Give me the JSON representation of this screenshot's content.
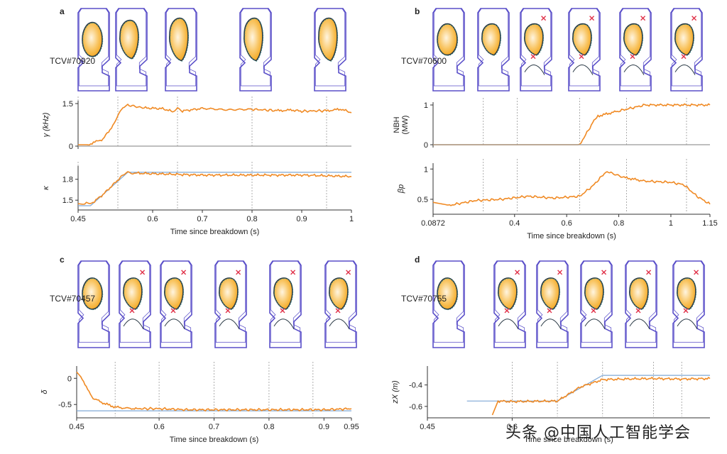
{
  "watermark": "头条 @中国人工智能学会",
  "panels": {
    "a": {
      "letter": "a",
      "shot": "TCV#70920",
      "xlabel": "Time since breakdown (s)"
    },
    "b": {
      "letter": "b",
      "shot": "TCV#70600",
      "xlabel": "Time since breakdown (s)"
    },
    "c": {
      "letter": "c",
      "shot": "TCV#70457",
      "xlabel": "Time since breakdown (s)"
    },
    "d": {
      "letter": "d",
      "shot": "TCV#70755",
      "xlabel": "Time since breakdown (s)"
    }
  },
  "colors": {
    "vessel": "#5a4fc9",
    "target": "#7fa8d6",
    "measured": "#f08a24",
    "plasma_outer": "#f3a51a",
    "plasma_inner": "#fff5e0",
    "xpoint": "#e0334a",
    "lcfs": "#2b3a46"
  },
  "chart_data": [
    {
      "type": "line",
      "panel": "a",
      "name": "gamma",
      "ylabel": "γ (kHz)",
      "yticks": [
        "0",
        "1.5"
      ],
      "xticks": [],
      "xlim": [
        0.45,
        1.0
      ],
      "ylim": [
        0,
        1.5
      ],
      "series": [
        {
          "role": "measured",
          "x": [
            0.45,
            0.47,
            0.5,
            0.52,
            0.53,
            0.54,
            0.55,
            0.58,
            0.62,
            0.64,
            0.65,
            0.66,
            0.7,
            0.75,
            0.8,
            0.85,
            0.88,
            0.9,
            0.95,
            0.98,
            1.0
          ],
          "y": [
            0.05,
            0.05,
            0.25,
            0.72,
            1.05,
            1.35,
            1.45,
            1.35,
            1.32,
            1.22,
            1.36,
            1.24,
            1.33,
            1.28,
            1.3,
            1.25,
            1.27,
            1.23,
            1.25,
            1.3,
            1.18
          ]
        },
        {
          "role": "baseline",
          "x": [
            0.45,
            1.0
          ],
          "y": [
            0,
            0
          ]
        }
      ],
      "markers": [
        0.45,
        0.53,
        0.65,
        0.8,
        0.95
      ]
    },
    {
      "type": "line",
      "panel": "a",
      "name": "kappa",
      "ylabel": "κ",
      "yticks": [
        "1.5",
        "1.8"
      ],
      "xticks": [
        "0.45",
        "0.6",
        "0.7",
        "0.8",
        "0.9",
        "1"
      ],
      "xlim": [
        0.45,
        1.0
      ],
      "ylim": [
        1.4,
        1.95
      ],
      "series": [
        {
          "role": "target",
          "x": [
            0.45,
            0.475,
            0.55,
            1.0
          ],
          "y": [
            1.42,
            1.42,
            1.9,
            1.9
          ]
        },
        {
          "role": "measured",
          "x": [
            0.45,
            0.46,
            0.47,
            0.48,
            0.5,
            0.52,
            0.54,
            0.55,
            0.56,
            0.6,
            0.7,
            0.8,
            0.9,
            1.0
          ],
          "y": [
            1.45,
            1.44,
            1.46,
            1.47,
            1.58,
            1.72,
            1.86,
            1.9,
            1.89,
            1.88,
            1.86,
            1.86,
            1.86,
            1.84
          ]
        }
      ],
      "markers": [
        0.45,
        0.53,
        0.65,
        0.8,
        0.95
      ]
    },
    {
      "type": "line",
      "panel": "b",
      "name": "NBH",
      "ylabel": "NBH (MW)",
      "yticks": [
        "0",
        "1"
      ],
      "xticks": [],
      "xlim": [
        0.0872,
        1.15
      ],
      "ylim": [
        0,
        1
      ],
      "series": [
        {
          "role": "measured",
          "x": [
            0.0872,
            0.65,
            0.7,
            0.72,
            0.8,
            0.9,
            1.15
          ],
          "y": [
            0,
            0,
            0.55,
            0.72,
            0.85,
            1.0,
            1.0
          ]
        },
        {
          "role": "baseline",
          "x": [
            0.0872,
            1.15
          ],
          "y": [
            0,
            0
          ]
        }
      ],
      "markers": [
        0.28,
        0.41,
        0.65,
        0.83,
        1.06
      ]
    },
    {
      "type": "line",
      "panel": "b",
      "name": "beta_p",
      "ylabel": "βp",
      "yticks": [
        "0.5",
        "1"
      ],
      "xticks": [
        "0.0872",
        "0.4",
        "0.6",
        "0.8",
        "1",
        "1.15"
      ],
      "xlim": [
        0.0872,
        1.15
      ],
      "ylim": [
        0.3,
        1.05
      ],
      "series": [
        {
          "role": "measured",
          "x": [
            0.0872,
            0.15,
            0.25,
            0.35,
            0.45,
            0.55,
            0.65,
            0.7,
            0.75,
            0.78,
            0.82,
            0.9,
            1.0,
            1.05,
            1.1,
            1.15
          ],
          "y": [
            0.45,
            0.4,
            0.48,
            0.5,
            0.55,
            0.52,
            0.55,
            0.72,
            0.95,
            0.92,
            0.86,
            0.8,
            0.78,
            0.74,
            0.55,
            0.42
          ]
        }
      ],
      "markers": [
        0.28,
        0.41,
        0.65,
        0.83,
        1.06
      ]
    },
    {
      "type": "line",
      "panel": "c",
      "name": "delta",
      "ylabel": "δ",
      "yticks": [
        "0",
        "-0.5"
      ],
      "xticks": [
        "0.45",
        "0.6",
        "0.7",
        "0.8",
        "0.9",
        "0.95"
      ],
      "xlim": [
        0.45,
        0.95
      ],
      "ylim": [
        -0.7,
        0.18
      ],
      "series": [
        {
          "role": "target",
          "x": [
            0.45,
            0.95
          ],
          "y": [
            -0.62,
            -0.62
          ]
        },
        {
          "role": "measured",
          "x": [
            0.45,
            0.46,
            0.47,
            0.48,
            0.5,
            0.52,
            0.54,
            0.56,
            0.6,
            0.65,
            0.7,
            0.75,
            0.8,
            0.85,
            0.9,
            0.95
          ],
          "y": [
            0.12,
            0.0,
            -0.22,
            -0.38,
            -0.48,
            -0.55,
            -0.57,
            -0.58,
            -0.58,
            -0.6,
            -0.6,
            -0.6,
            -0.6,
            -0.6,
            -0.6,
            -0.58
          ]
        }
      ],
      "markers": [
        0.52,
        0.6,
        0.7,
        0.8,
        0.88
      ]
    },
    {
      "type": "line",
      "panel": "d",
      "name": "z_X",
      "ylabel": "zX (m)",
      "yticks": [
        "-0.4",
        "-0.6"
      ],
      "xticks": [
        "0.45",
        "0.6"
      ],
      "xlim": [
        0.45,
        0.95
      ],
      "ylim": [
        -0.68,
        -0.25
      ],
      "series": [
        {
          "role": "target",
          "x": [
            0.52,
            0.68,
            0.76,
            0.95
          ],
          "y": [
            -0.55,
            -0.55,
            -0.31,
            -0.31
          ]
        },
        {
          "role": "measured",
          "x": [
            0.565,
            0.575,
            0.6,
            0.68,
            0.72,
            0.76,
            0.8,
            0.85,
            0.9,
            0.95
          ],
          "y": [
            -0.68,
            -0.55,
            -0.555,
            -0.55,
            -0.42,
            -0.35,
            -0.345,
            -0.34,
            -0.345,
            -0.34
          ]
        }
      ],
      "markers": [
        0.6,
        0.68,
        0.76,
        0.85,
        0.9
      ]
    }
  ]
}
